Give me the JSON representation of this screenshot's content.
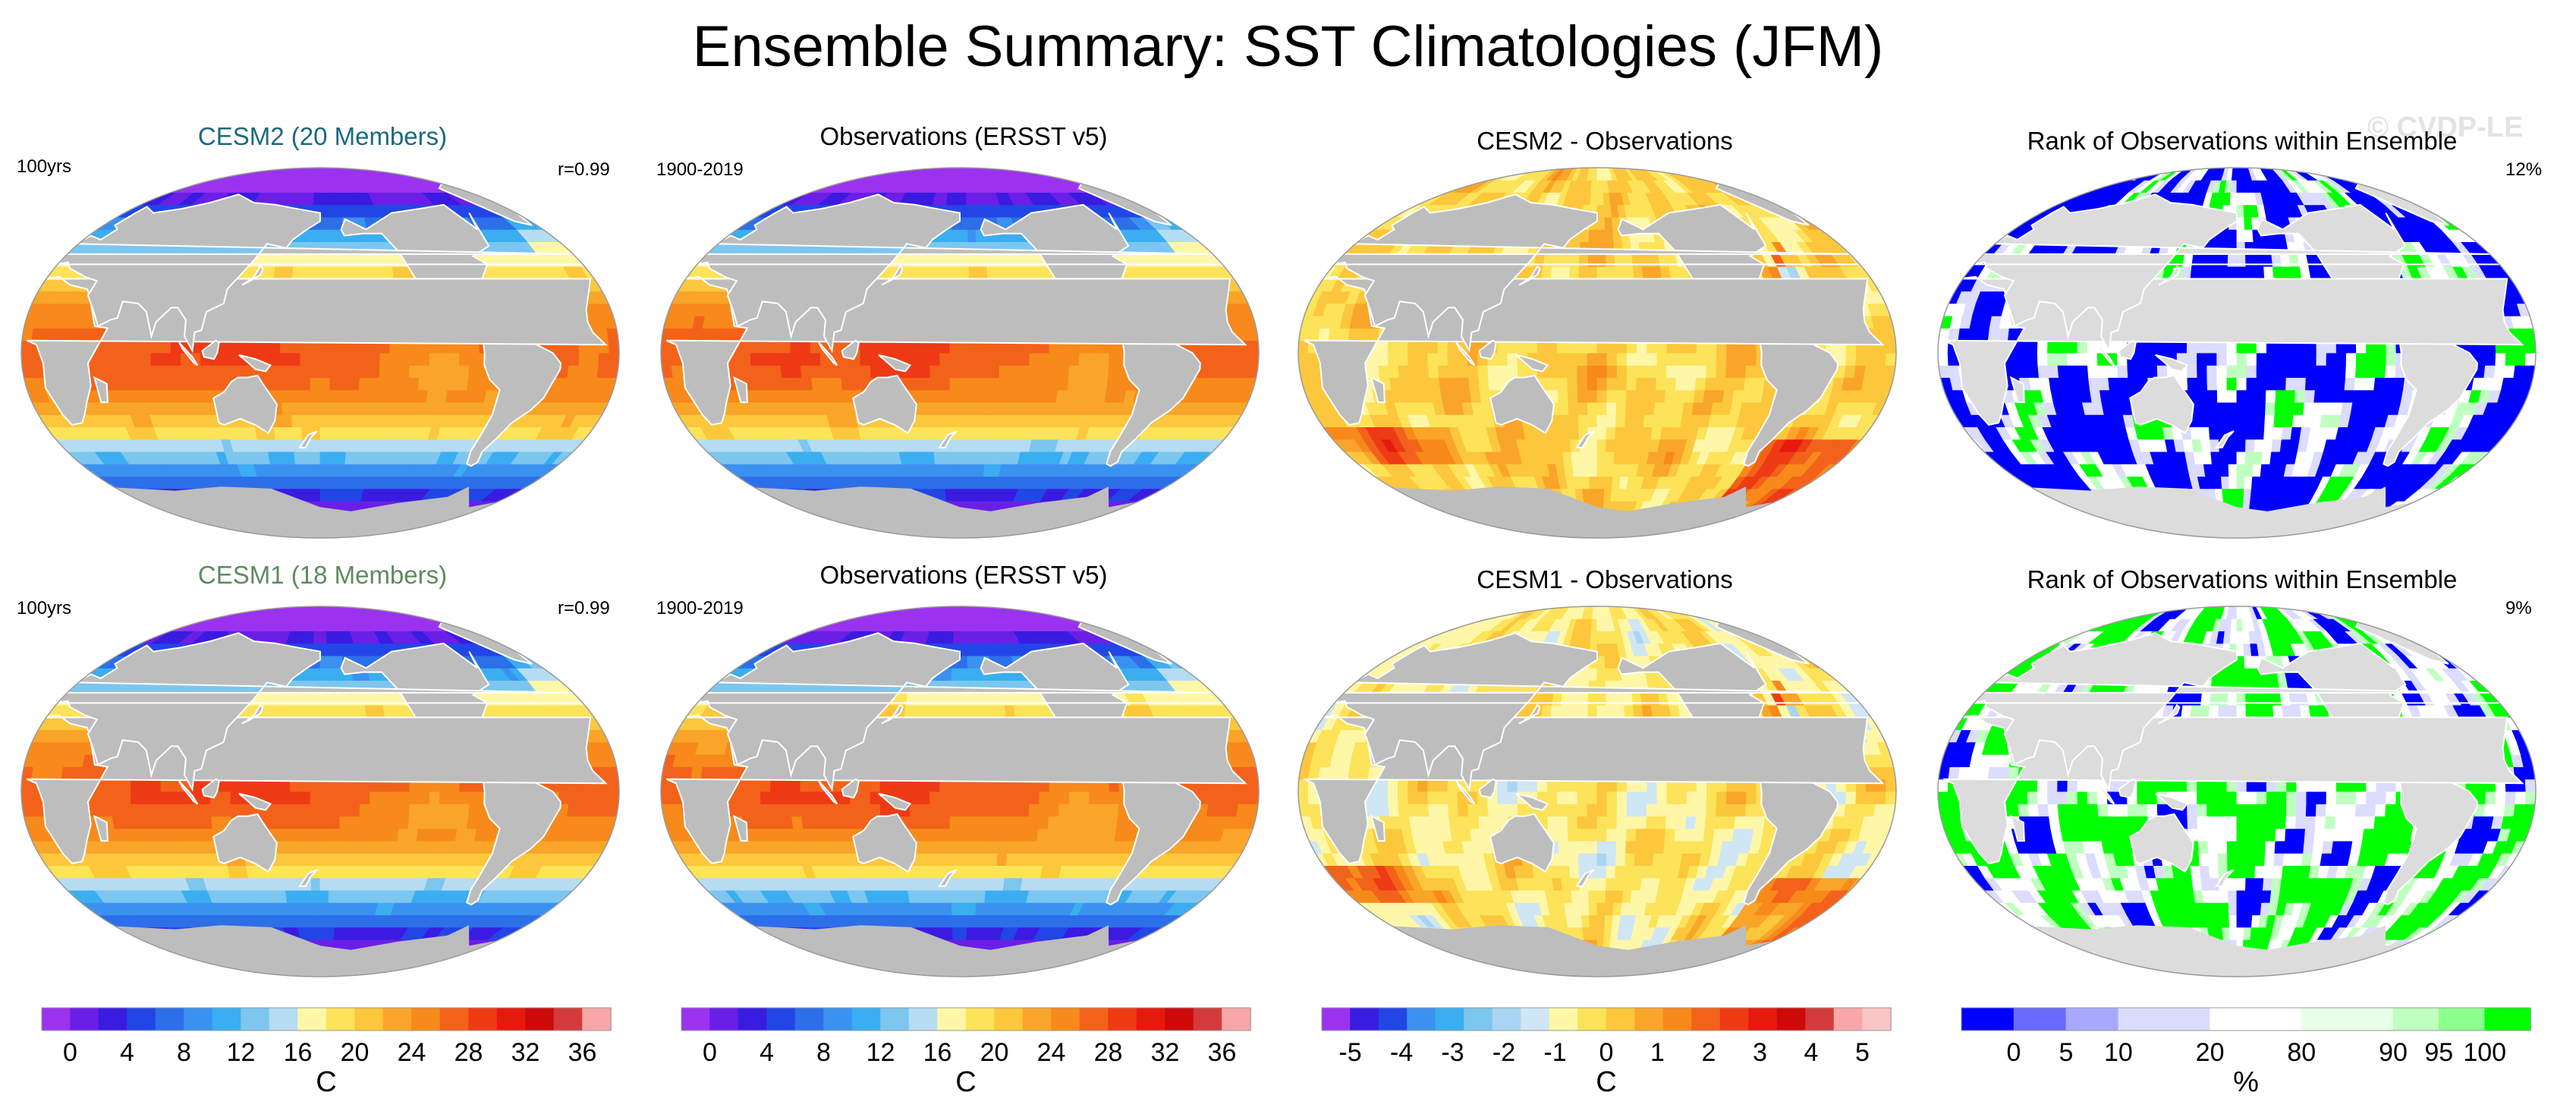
{
  "title": "Ensemble Summary: SST Climatologies (JFM)",
  "watermark": "© CVDP-LE",
  "panels": [
    {
      "title": "CESM2 (20 Members)",
      "title_color": "#1b6a7f",
      "left_label": "100yrs",
      "right_label": "r=0.99",
      "field": "sst_model",
      "variant": 0
    },
    {
      "title": "Observations (ERSST v5)",
      "title_color": "#000000",
      "left_label": "1900-2019",
      "right_label": "",
      "field": "sst_obs",
      "variant": 0
    },
    {
      "title": "CESM2 - Observations",
      "title_color": "#000000",
      "left_label": "",
      "right_label": "",
      "field": "diff",
      "variant": 0
    },
    {
      "title": "Rank of Observations within Ensemble",
      "title_color": "#000000",
      "left_label": "",
      "right_label": "12%",
      "field": "rank",
      "variant": 0
    },
    {
      "title": "CESM1 (18 Members)",
      "title_color": "#5f8a5f",
      "left_label": "100yrs",
      "right_label": "r=0.99",
      "field": "sst_model",
      "variant": 1
    },
    {
      "title": "Observations (ERSST v5)",
      "title_color": "#000000",
      "left_label": "1900-2019",
      "right_label": "",
      "field": "sst_obs",
      "variant": 1
    },
    {
      "title": "CESM1 - Observations",
      "title_color": "#000000",
      "left_label": "",
      "right_label": "",
      "field": "diff",
      "variant": 1
    },
    {
      "title": "Rank of Observations within Ensemble",
      "title_color": "#000000",
      "left_label": "",
      "right_label": "9%",
      "field": "rank",
      "variant": 1
    }
  ],
  "colorbars": [
    {
      "unit": "C",
      "type": "sst",
      "colors": [
        "#9b32f0",
        "#6a1fe6",
        "#3a1be0",
        "#2246e6",
        "#2c6fe8",
        "#3b91ef",
        "#3aaef0",
        "#7cc6ef",
        "#b6dcf2",
        "#fff7a8",
        "#fde35a",
        "#fcc73c",
        "#f9a529",
        "#f78a1b",
        "#f3621a",
        "#ee3a15",
        "#e6190f",
        "#cc0a0a",
        "#d33b3b",
        "#f7a7a7"
      ],
      "tick_labels": [
        "0",
        "4",
        "8",
        "12",
        "16",
        "20",
        "24",
        "28",
        "32",
        "36"
      ]
    },
    {
      "unit": "C",
      "type": "sst",
      "colors": [
        "#9b32f0",
        "#6a1fe6",
        "#3a1be0",
        "#2246e6",
        "#2c6fe8",
        "#3b91ef",
        "#3aaef0",
        "#7cc6ef",
        "#b6dcf2",
        "#fff7a8",
        "#fde35a",
        "#fcc73c",
        "#f9a529",
        "#f78a1b",
        "#f3621a",
        "#ee3a15",
        "#e6190f",
        "#cc0a0a",
        "#d33b3b",
        "#f7a7a7"
      ],
      "tick_labels": [
        "0",
        "4",
        "8",
        "12",
        "16",
        "20",
        "24",
        "28",
        "32",
        "36"
      ]
    },
    {
      "unit": "C",
      "type": "diff",
      "colors": [
        "#9b32f0",
        "#3a1be0",
        "#2246e6",
        "#3b91ef",
        "#3aaef0",
        "#7cc6ef",
        "#a9d5f2",
        "#cfe6f4",
        "#fff7a8",
        "#fde35a",
        "#fcc73c",
        "#f9a529",
        "#f78a1b",
        "#f3621a",
        "#ee3a15",
        "#e6190f",
        "#cc0a0a",
        "#d33b3b",
        "#f7a7a7",
        "#f9c4c4"
      ],
      "tick_labels": [
        "-5",
        "-4",
        "-3",
        "-2",
        "-1",
        "0",
        "1",
        "2",
        "3",
        "4",
        "5"
      ]
    },
    {
      "unit": "%",
      "type": "rank",
      "colors": [
        "#0000ff",
        "#6a6aff",
        "#a8a8ff",
        "#dcdcff",
        "#ffffff",
        "#e6ffe6",
        "#bfffbf",
        "#8cff8c",
        "#00ff00"
      ],
      "tick_labels": [
        "0",
        "5",
        "10",
        "20",
        "80",
        "90",
        "95",
        "100"
      ]
    }
  ],
  "colors": {
    "land": "#bdbdbd",
    "coast": "#ffffff"
  }
}
